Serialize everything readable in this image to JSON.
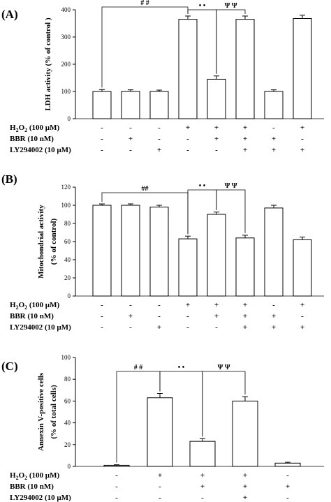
{
  "chart_data": [
    {
      "type": "bar",
      "panel_label": "(A)",
      "ylabel": "LDH activity (% of control )",
      "ylim": [
        0,
        400
      ],
      "yticks": [
        "0",
        "100",
        "200",
        "300",
        "400"
      ],
      "categories": [
        "1",
        "2",
        "3",
        "4",
        "5",
        "6",
        "7",
        "8"
      ],
      "values": [
        100,
        100,
        100,
        365,
        145,
        365,
        100,
        368
      ],
      "errors": [
        7,
        6,
        5,
        12,
        12,
        12,
        6,
        12
      ],
      "treatments": [
        {
          "label": "H2O2 (100 µM)",
          "signs": [
            "-",
            "-",
            "-",
            "+",
            "+",
            "+",
            "-",
            "+"
          ]
        },
        {
          "label": "BBR (10 nM)",
          "signs": [
            "-",
            "+",
            "-",
            "-",
            "+",
            "+",
            "+",
            "-"
          ]
        },
        {
          "label": "LY294002 (10 µM)",
          "signs": [
            "-",
            "-",
            "+",
            "-",
            "-",
            "+",
            "+",
            "+"
          ]
        }
      ],
      "significance": [
        {
          "text": "# #",
          "from": 0,
          "to": 3
        },
        {
          "text": "• •",
          "from": 3,
          "to": 4
        },
        {
          "text": "Ψ Ψ",
          "from": 4,
          "to": 5
        }
      ]
    },
    {
      "type": "bar",
      "panel_label": "(B)",
      "ylabel": "Mitochondrial activity",
      "ylabel2": "(% of control)",
      "ylim": [
        0,
        120
      ],
      "yticks": [
        "0",
        "20",
        "40",
        "60",
        "80",
        "100",
        "120"
      ],
      "categories": [
        "1",
        "2",
        "3",
        "4",
        "5",
        "6",
        "7",
        "8"
      ],
      "values": [
        100,
        100,
        98,
        63,
        90,
        64,
        97,
        62
      ],
      "errors": [
        1.5,
        1.5,
        2,
        3,
        2.5,
        3,
        3,
        3
      ],
      "treatments": [
        {
          "label": "H2O2 (100 µM)",
          "signs": [
            "-",
            "-",
            "-",
            "+",
            "+",
            "+",
            "-",
            "+"
          ]
        },
        {
          "label": "BBR (10 nM)",
          "signs": [
            "-",
            "+",
            "-",
            "-",
            "+",
            "+",
            "+",
            "-"
          ]
        },
        {
          "label": "LY294002 (10 µM)",
          "signs": [
            "-",
            "-",
            "+",
            "-",
            "-",
            "+",
            "+",
            "+"
          ]
        }
      ],
      "significance": [
        {
          "text": "##",
          "from": 0,
          "to": 3
        },
        {
          "text": "• •",
          "from": 3,
          "to": 4
        },
        {
          "text": "Ψ Ψ",
          "from": 4,
          "to": 5
        }
      ]
    },
    {
      "type": "bar",
      "panel_label": "(C)",
      "ylabel": "Annexin V-positive cells",
      "ylabel2": "(% of total cells)",
      "ylim": [
        0,
        100
      ],
      "yticks": [
        "0",
        "20",
        "40",
        "60",
        "80",
        "100"
      ],
      "categories": [
        "1",
        "2",
        "3",
        "4",
        "5"
      ],
      "values": [
        1,
        63,
        23,
        60,
        3
      ],
      "errors": [
        0.5,
        4,
        2.5,
        4,
        0.8
      ],
      "treatments": [
        {
          "label": "H2O2 (100 µM)",
          "signs": [
            "-",
            "+",
            "+",
            "+",
            "-"
          ]
        },
        {
          "label": "BBR (10 nM)",
          "signs": [
            "-",
            "-",
            "+",
            "+",
            "+"
          ]
        },
        {
          "label": "LY294002 (10 µM)",
          "signs": [
            "-",
            "-",
            "-",
            "+",
            "-"
          ]
        }
      ],
      "significance": [
        {
          "text": "# #",
          "from": 0,
          "to": 1
        },
        {
          "text": "• •",
          "from": 1,
          "to": 2
        },
        {
          "text": "Ψ Ψ",
          "from": 2,
          "to": 3
        }
      ]
    }
  ]
}
